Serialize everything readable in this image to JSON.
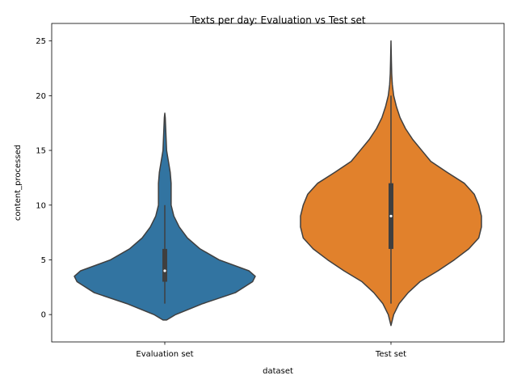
{
  "chart_data": {
    "type": "violin",
    "title": "Texts per day: Evaluation vs Test set",
    "xlabel": "dataset",
    "ylabel": "content_processed",
    "categories": [
      "Evaluation set",
      "Test set"
    ],
    "ylim": [
      -2.5,
      26.6
    ],
    "yticks": [
      0,
      5,
      10,
      15,
      20,
      25
    ],
    "grid": false,
    "legend": "none",
    "series": [
      {
        "category": "Evaluation set",
        "color": "#3274a1",
        "box": {
          "whisker_low": 1,
          "q1": 3,
          "median": 4,
          "q3": 6,
          "whisker_high": 10
        },
        "density": [
          [
            -0.5,
            0.02
          ],
          [
            0.0,
            0.12
          ],
          [
            1.0,
            0.42
          ],
          [
            2.0,
            0.78
          ],
          [
            3.0,
            0.97
          ],
          [
            3.5,
            1.0
          ],
          [
            4.0,
            0.93
          ],
          [
            5.0,
            0.6
          ],
          [
            6.0,
            0.39
          ],
          [
            7.0,
            0.25
          ],
          [
            8.0,
            0.16
          ],
          [
            9.0,
            0.1
          ],
          [
            10.0,
            0.07
          ],
          [
            11.0,
            0.07
          ],
          [
            12.0,
            0.07
          ],
          [
            13.0,
            0.06
          ],
          [
            14.0,
            0.04
          ],
          [
            15.0,
            0.02
          ],
          [
            16.0,
            0.015
          ],
          [
            17.0,
            0.01
          ],
          [
            18.0,
            0.005
          ],
          [
            18.4,
            0.0
          ]
        ]
      },
      {
        "category": "Test set",
        "color": "#e1812c",
        "box": {
          "whisker_low": 1,
          "q1": 6,
          "median": 9,
          "q3": 12,
          "whisker_high": 20
        },
        "density": [
          [
            -1.0,
            0.0
          ],
          [
            0.0,
            0.03
          ],
          [
            1.0,
            0.09
          ],
          [
            2.0,
            0.19
          ],
          [
            3.0,
            0.32
          ],
          [
            4.0,
            0.52
          ],
          [
            5.0,
            0.7
          ],
          [
            6.0,
            0.86
          ],
          [
            7.0,
            0.97
          ],
          [
            8.0,
            1.0
          ],
          [
            9.0,
            1.0
          ],
          [
            10.0,
            0.97
          ],
          [
            11.0,
            0.92
          ],
          [
            12.0,
            0.81
          ],
          [
            13.0,
            0.62
          ],
          [
            14.0,
            0.44
          ],
          [
            15.0,
            0.34
          ],
          [
            16.0,
            0.24
          ],
          [
            17.0,
            0.16
          ],
          [
            18.0,
            0.1
          ],
          [
            19.0,
            0.06
          ],
          [
            20.0,
            0.03
          ],
          [
            21.0,
            0.015
          ],
          [
            22.0,
            0.008
          ],
          [
            23.0,
            0.005
          ],
          [
            25.0,
            0.0
          ]
        ]
      }
    ]
  }
}
